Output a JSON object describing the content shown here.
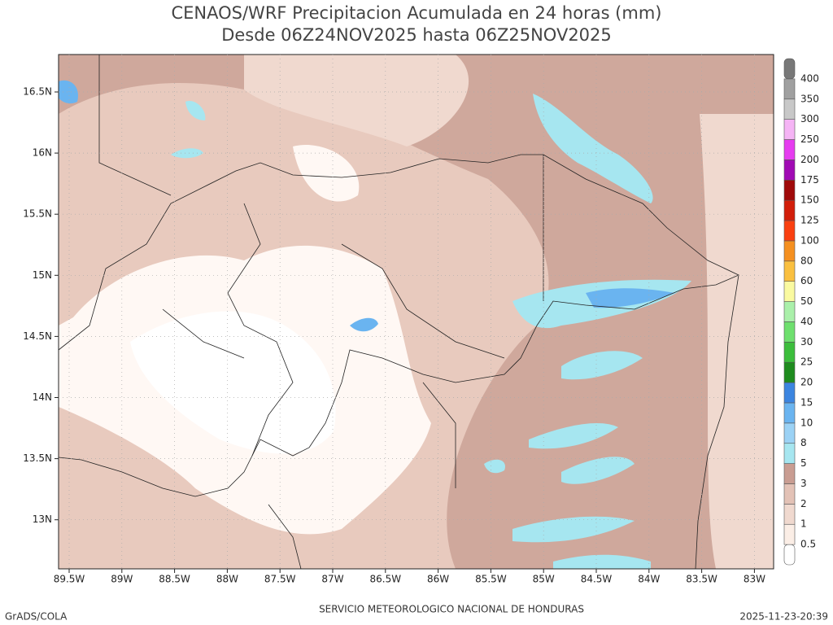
{
  "title": [
    "CENAOS/WRF Precipitacion Acumulada en 24 horas (mm)",
    "Desde 06Z24NOV2025 hasta 06Z25NOV2025"
  ],
  "lat_labels": [
    "16.5N",
    "16N",
    "15.5N",
    "15N",
    "14.5N",
    "14N",
    "13.5N",
    "13N"
  ],
  "lon_labels": [
    "89.5W",
    "89W",
    "88.5W",
    "88W",
    "87.5W",
    "87W",
    "86.5W",
    "86W",
    "85.5W",
    "85W",
    "84.5W",
    "84W",
    "83.5W",
    "83W"
  ],
  "colorbar": {
    "levels": [
      0.5,
      1,
      2,
      3,
      5,
      8,
      10,
      15,
      20,
      25,
      30,
      40,
      50,
      60,
      80,
      100,
      125,
      150,
      175,
      200,
      250,
      300,
      350,
      400
    ],
    "colors": [
      "#ffffff",
      "#fbeee6",
      "#f0d9cf",
      "#e3c2b6",
      "#c99d92",
      "#a6e6f0",
      "#9bd2f5",
      "#6ab4f0",
      "#3c85e0",
      "#1e8c1e",
      "#3cbe3c",
      "#6ee06e",
      "#aaf0aa",
      "#fafaa0",
      "#fac040",
      "#f59020",
      "#fa4010",
      "#d21e0a",
      "#a00a0a",
      "#a00ab4",
      "#e63cf0",
      "#f5b4f5",
      "#c8c8c8",
      "#a0a0a0",
      "#787878"
    ]
  },
  "footer": {
    "left": "GrADS/COLA",
    "center": "SERVICIO METEOROLOGICO NACIONAL DE HONDURAS",
    "right": "2025-11-23-20:39"
  }
}
